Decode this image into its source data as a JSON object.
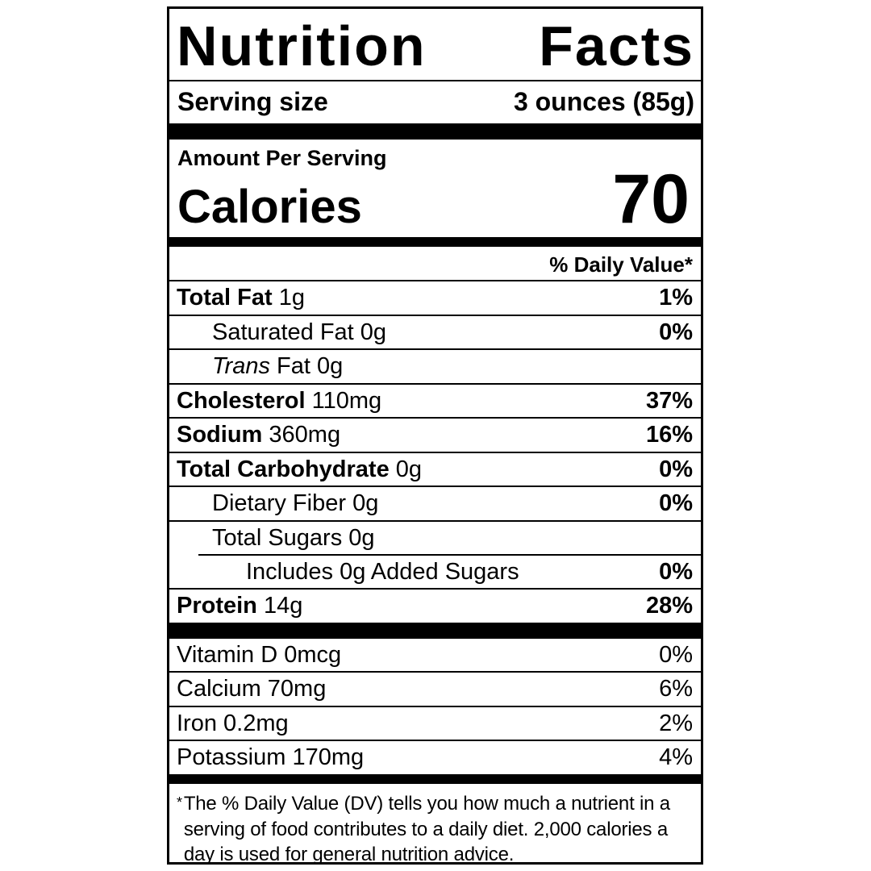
{
  "colors": {
    "ink": "#000000",
    "background": "#ffffff"
  },
  "label": {
    "title": "Nutrition Facts",
    "title_words": [
      "Nutrition",
      "Facts"
    ],
    "serving_size": {
      "label": "Serving size",
      "value": "3 ounces (85g)"
    },
    "amount_per_serving": "Amount Per Serving",
    "calories": {
      "label": "Calories",
      "value": "70"
    },
    "daily_value_header": "% Daily Value*",
    "nutrients": [
      {
        "name": "Total Fat",
        "amount": "1g",
        "dv": "1%"
      },
      {
        "name": "Saturated Fat",
        "amount": "0g",
        "dv": "0%"
      },
      {
        "name": "Trans",
        "amount": "Fat 0g",
        "dv": ""
      },
      {
        "name": "Cholesterol",
        "amount": "110mg",
        "dv": "37%"
      },
      {
        "name": "Sodium",
        "amount": "360mg",
        "dv": "16%"
      },
      {
        "name": "Total Carbohydrate",
        "amount": "0g",
        "dv": "0%"
      },
      {
        "name": "Dietary Fiber",
        "amount": "0g",
        "dv": "0%"
      },
      {
        "name": "Total Sugars",
        "amount": "0g",
        "dv": ""
      },
      {
        "name": "Includes 0g Added Sugars",
        "amount": "",
        "dv": "0%"
      },
      {
        "name": "Protein",
        "amount": "14g",
        "dv": "28%"
      }
    ],
    "micronutrients": [
      {
        "name": "Vitamin D 0mcg",
        "dv": "0%"
      },
      {
        "name": "Calcium 70mg",
        "dv": "6%"
      },
      {
        "name": "Iron 0.2mg",
        "dv": "2%"
      },
      {
        "name": "Potassium 170mg",
        "dv": "4%"
      }
    ],
    "footnote": {
      "marker": "*",
      "text": "The % Daily Value (DV) tells you how much a nutrient in a serving of food contributes to a daily diet. 2,000 calories a day is used for general nutrition advice."
    }
  }
}
